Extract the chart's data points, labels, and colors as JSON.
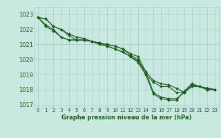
{
  "title": "Graphe pression niveau de la mer (hPa)",
  "background_color": "#c8e8e0",
  "grid_color": "#a8ccc8",
  "line_color": "#1a5c1a",
  "xlim": [
    -0.5,
    23.5
  ],
  "ylim": [
    1016.8,
    1023.5
  ],
  "yticks": [
    1017,
    1018,
    1019,
    1020,
    1021,
    1022,
    1023
  ],
  "xticks": [
    0,
    1,
    2,
    3,
    4,
    5,
    6,
    7,
    8,
    9,
    10,
    11,
    12,
    13,
    14,
    15,
    16,
    17,
    18,
    19,
    20,
    21,
    22,
    23
  ],
  "series": [
    [
      1022.8,
      1022.7,
      1022.2,
      1022.0,
      1021.7,
      1021.5,
      1021.4,
      1021.2,
      1021.1,
      1021.0,
      1020.9,
      1020.7,
      1020.4,
      1020.2,
      1019.2,
      1017.8,
      1017.5,
      1017.4,
      1017.4,
      1017.8,
      1018.3,
      1018.2,
      1018.0,
      1018.0
    ],
    [
      1022.8,
      1022.7,
      1022.2,
      1022.0,
      1021.6,
      1021.3,
      1021.3,
      1021.2,
      1021.1,
      1021.0,
      1020.9,
      1020.7,
      1020.3,
      1020.0,
      1019.0,
      1017.7,
      1017.4,
      1017.3,
      1017.3,
      1017.9,
      1018.4,
      1018.2,
      1018.0,
      1018.0
    ],
    [
      1022.8,
      1022.3,
      1022.0,
      1021.5,
      1021.3,
      1021.3,
      1021.3,
      1021.2,
      1021.1,
      1020.9,
      1020.7,
      1020.5,
      1020.2,
      1019.9,
      1019.2,
      1018.6,
      1018.4,
      1018.3,
      1018.1,
      1017.8,
      1018.2,
      1018.2,
      1018.1,
      1018.0
    ],
    [
      1022.8,
      1022.2,
      1021.9,
      1021.5,
      1021.3,
      1021.3,
      1021.3,
      1021.2,
      1021.0,
      1020.9,
      1020.7,
      1020.5,
      1020.2,
      1019.8,
      1019.0,
      1018.5,
      1018.2,
      1018.2,
      1017.8,
      1017.8,
      1018.3,
      1018.2,
      1018.1,
      1018.0
    ]
  ],
  "xlabel_fontsize": 6.0,
  "ytick_fontsize": 6.0,
  "xtick_fontsize": 5.0,
  "marker_size": 2.0,
  "linewidth": 0.8
}
